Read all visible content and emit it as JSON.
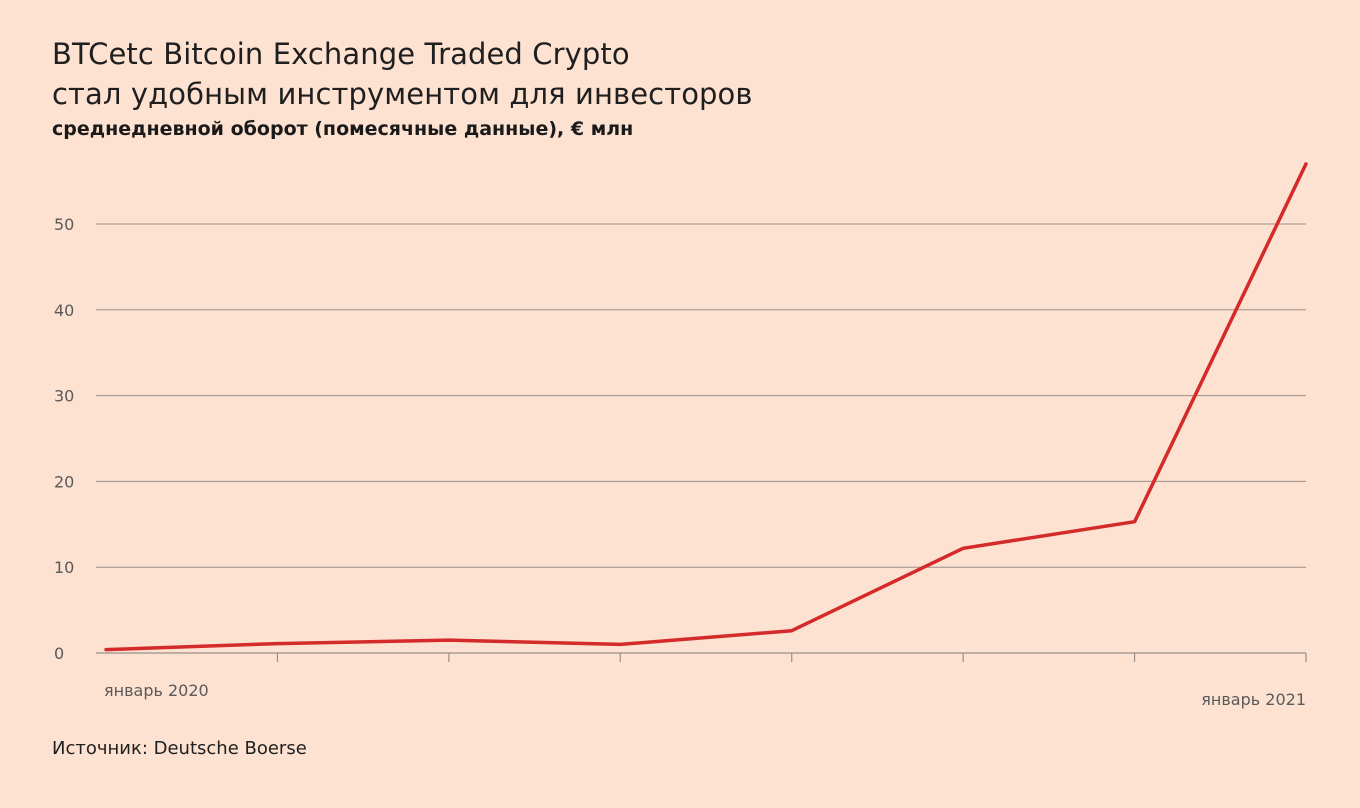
{
  "header": {
    "title_line1": "BTCetc Bitcoin Exchange Traded Crypto",
    "title_line2": "стал удобным инструментом для инвесторов",
    "subtitle": "среднедневной оборот (помесячные данные), € млн"
  },
  "footer": {
    "source": "Источник: Deutsche Boerse"
  },
  "colors": {
    "background": "#fde1d1",
    "line": "#d42a2a",
    "grid": "#9a8f88"
  },
  "chart_data": {
    "type": "line",
    "title": "BTCetc Bitcoin Exchange Traded Crypto стал удобным инструментом для инвесторов",
    "subtitle": "среднедневной оборот (помесячные данные), € млн",
    "xlabel": "",
    "ylabel": "",
    "x_labels": [
      "январь 2020",
      "",
      "",
      "",
      "",
      "",
      "",
      "январь 2021"
    ],
    "x_tick_labels_shown": {
      "first": "январь 2020",
      "last": "январь 2021"
    },
    "ylim": [
      0,
      57
    ],
    "yticks": [
      0,
      10,
      20,
      30,
      40,
      50
    ],
    "grid": true,
    "series": [
      {
        "values": [
          0.4,
          1.1,
          1.5,
          1.0,
          2.6,
          12.2,
          15.3,
          57.0
        ]
      }
    ]
  }
}
